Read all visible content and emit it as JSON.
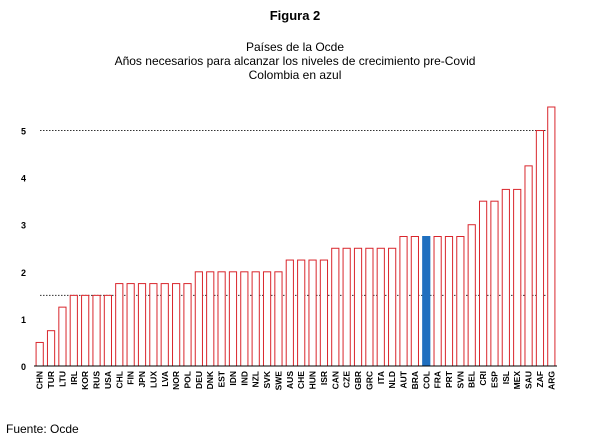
{
  "figure_label": "Figura 2",
  "title_lines": [
    "Países de la Ocde",
    "Años necesarios para alcanzar los niveles de crecimiento pre-Covid",
    "Colombia en azul"
  ],
  "source": "Fuente: Ocde",
  "colors": {
    "bar_outline": "#d9262c",
    "highlight": "#1f6fbf",
    "axis": "#000000",
    "reference_line": "#333333"
  },
  "chart_data": {
    "type": "bar",
    "title": "Países de la Ocde",
    "subtitle": "Años necesarios para alcanzar los niveles de crecimiento pre-Covid",
    "xlabel": "",
    "ylabel": "",
    "ylim": [
      0,
      5.5
    ],
    "yticks": [
      0,
      1,
      2,
      3,
      4,
      5
    ],
    "reference_lines": [
      1.5,
      5
    ],
    "grid": false,
    "legend": "none",
    "highlight_category": "COL",
    "categories": [
      "CHN",
      "TUR",
      "LTU",
      "IRL",
      "KOR",
      "RUS",
      "USA",
      "CHL",
      "FIN",
      "JPN",
      "LUX",
      "LVA",
      "NOR",
      "POL",
      "DEU",
      "DNK",
      "EST",
      "IDN",
      "IND",
      "NZL",
      "SVK",
      "SWE",
      "AUS",
      "CHE",
      "HUN",
      "ISR",
      "CAN",
      "CZE",
      "GBR",
      "GRC",
      "ITA",
      "NLD",
      "AUT",
      "BRA",
      "COL",
      "FRA",
      "PRT",
      "SVN",
      "BEL",
      "CRI",
      "ESP",
      "ISL",
      "MEX",
      "SAU",
      "ZAF",
      "ARG"
    ],
    "values": [
      0.5,
      0.75,
      1.25,
      1.5,
      1.5,
      1.5,
      1.5,
      1.75,
      1.75,
      1.75,
      1.75,
      1.75,
      1.75,
      1.75,
      2,
      2,
      2,
      2,
      2,
      2,
      2,
      2,
      2.25,
      2.25,
      2.25,
      2.25,
      2.5,
      2.5,
      2.5,
      2.5,
      2.5,
      2.5,
      2.75,
      2.75,
      2.75,
      2.75,
      2.75,
      2.75,
      3,
      3.5,
      3.5,
      3.75,
      3.75,
      4.25,
      5,
      5.5
    ]
  }
}
